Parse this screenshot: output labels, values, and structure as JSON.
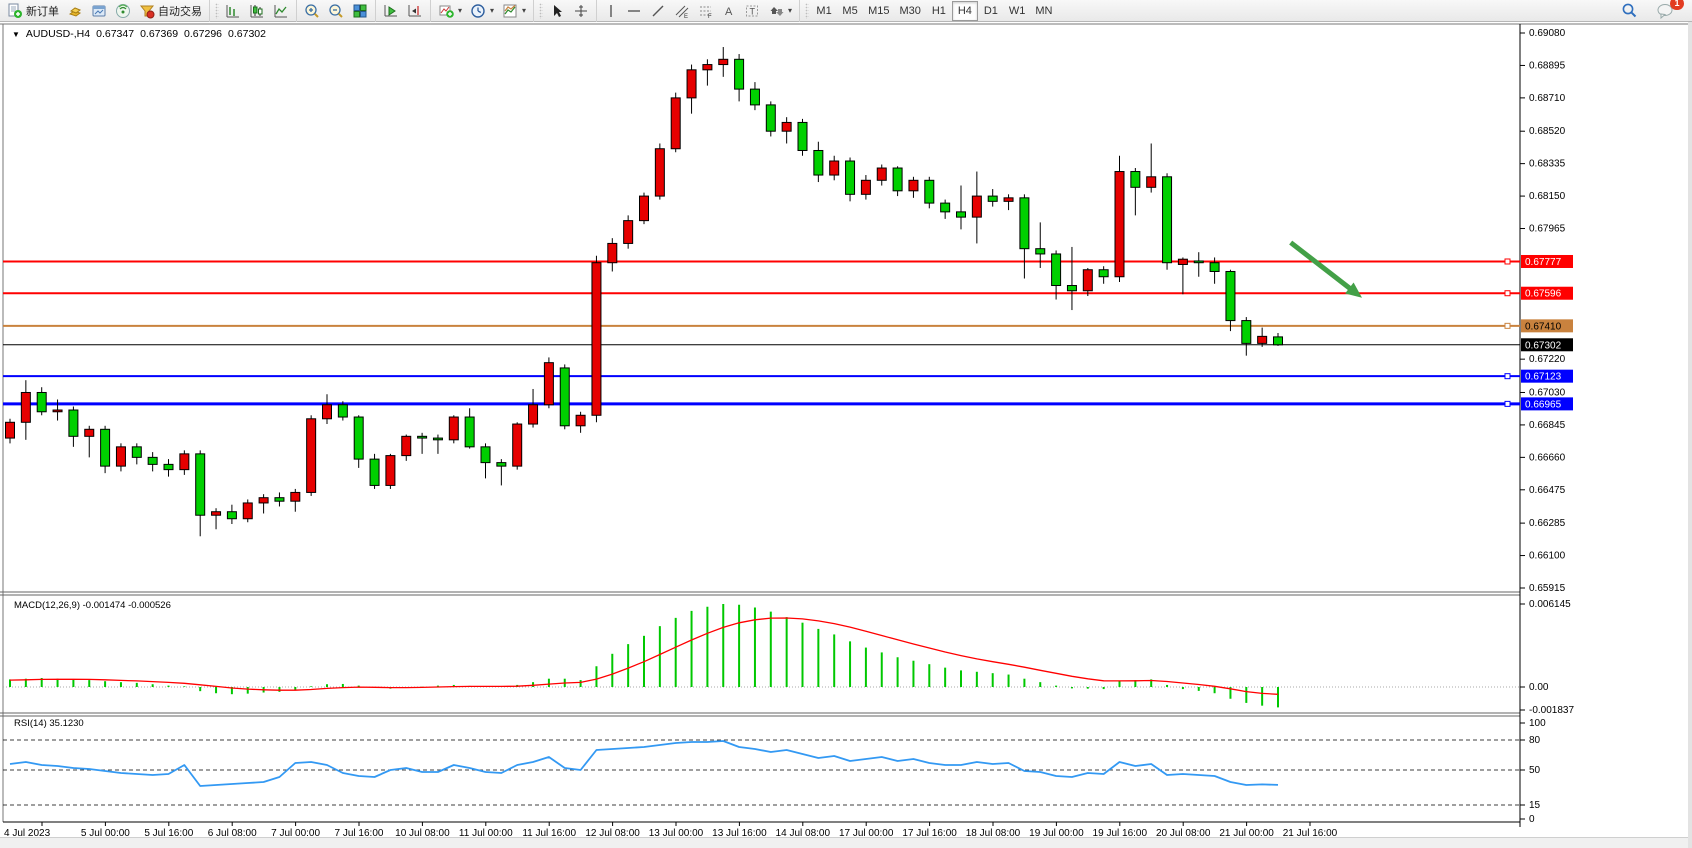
{
  "toolbar": {
    "new_order_label": "新订单",
    "autotrade_label": "自动交易",
    "timeframes": [
      "M1",
      "M5",
      "M15",
      "M30",
      "H1",
      "H4",
      "D1",
      "W1",
      "MN"
    ],
    "active_timeframe": "H4",
    "notification_count": "1"
  },
  "chart": {
    "title": "AUDUSD-,H4",
    "open": "0.67347",
    "high": "0.67369",
    "low": "0.67296",
    "close": "0.67302"
  },
  "indicators": {
    "macd_label": "MACD(12,26,9)",
    "macd_values": "-0.001474 -0.000526",
    "rsi_label": "RSI(14)",
    "rsi_value": "35.1230"
  },
  "chart_data": [
    {
      "type": "candlestick",
      "title": "AUDUSD-,H4",
      "timeframe": "H4",
      "bull_color": "#e60000",
      "bear_color": "#00d000",
      "ylim": [
        0.65915,
        0.6908
      ],
      "y_ticks": [
        "0.69080",
        "0.68895",
        "0.68710",
        "0.68520",
        "0.68335",
        "0.68150",
        "0.67965",
        "0.67220",
        "0.67030",
        "0.66845",
        "0.66660",
        "0.66475",
        "0.66285",
        "0.66100",
        "0.65915"
      ],
      "x_labels": [
        "4 Jul 2023",
        "5 Jul 00:00",
        "5 Jul 16:00",
        "6 Jul 08:00",
        "7 Jul 00:00",
        "7 Jul 16:00",
        "10 Jul 08:00",
        "11 Jul 00:00",
        "11 Jul 16:00",
        "12 Jul 08:00",
        "13 Jul 00:00",
        "13 Jul 16:00",
        "14 Jul 08:00",
        "17 Jul 00:00",
        "17 Jul 16:00",
        "18 Jul 08:00",
        "19 Jul 00:00",
        "19 Jul 16:00",
        "20 Jul 08:00",
        "21 Jul 00:00",
        "21 Jul 16:00"
      ],
      "price_lines": [
        {
          "price": "0.67777",
          "color": "#ff0000",
          "width": 2,
          "text_color": "#ffffff"
        },
        {
          "price": "0.67596",
          "color": "#ff0000",
          "width": 2,
          "text_color": "#ffffff"
        },
        {
          "price": "0.67410",
          "color": "#c9823e",
          "width": 2,
          "text_color": "#000000"
        },
        {
          "price": "0.67302",
          "color": "#000000",
          "width": 1,
          "text_color": "#ffffff",
          "style": "current-price"
        },
        {
          "price": "0.67123",
          "color": "#0000ff",
          "width": 2,
          "text_color": "#ffffff"
        },
        {
          "price": "0.66965",
          "color": "#0000ff",
          "width": 3,
          "text_color": "#ffffff"
        }
      ],
      "annotation_arrow": {
        "from_bar": 80.8,
        "from_price": 0.67885,
        "to_bar": 85.3,
        "to_price": 0.6757,
        "color": "#43a047"
      },
      "ohlc": [
        [
          0.6677,
          0.6688,
          0.6674,
          0.6686
        ],
        [
          0.6686,
          0.671,
          0.6676,
          0.6703
        ],
        [
          0.6703,
          0.6706,
          0.669,
          0.6692
        ],
        [
          0.6692,
          0.6699,
          0.6687,
          0.6693
        ],
        [
          0.6693,
          0.6695,
          0.6672,
          0.6678
        ],
        [
          0.6678,
          0.6684,
          0.6666,
          0.6682
        ],
        [
          0.6682,
          0.6684,
          0.6657,
          0.6661
        ],
        [
          0.6661,
          0.6674,
          0.6658,
          0.6672
        ],
        [
          0.6672,
          0.6674,
          0.6662,
          0.6666
        ],
        [
          0.6666,
          0.6669,
          0.6658,
          0.6662
        ],
        [
          0.6662,
          0.6665,
          0.6655,
          0.6659
        ],
        [
          0.6659,
          0.667,
          0.6656,
          0.6668
        ],
        [
          0.6668,
          0.667,
          0.6621,
          0.6633
        ],
        [
          0.6633,
          0.6637,
          0.6625,
          0.6635
        ],
        [
          0.6635,
          0.6639,
          0.6628,
          0.6631
        ],
        [
          0.6631,
          0.6642,
          0.6629,
          0.664
        ],
        [
          0.664,
          0.6645,
          0.6634,
          0.6643
        ],
        [
          0.6643,
          0.6646,
          0.6638,
          0.6641
        ],
        [
          0.6641,
          0.6648,
          0.6635,
          0.6646
        ],
        [
          0.6646,
          0.669,
          0.6644,
          0.6688
        ],
        [
          0.6688,
          0.6702,
          0.6685,
          0.6696
        ],
        [
          0.6696,
          0.6698,
          0.6687,
          0.6689
        ],
        [
          0.6689,
          0.669,
          0.666,
          0.6665
        ],
        [
          0.6665,
          0.6668,
          0.6648,
          0.665
        ],
        [
          0.665,
          0.6668,
          0.6648,
          0.6667
        ],
        [
          0.6667,
          0.6679,
          0.6664,
          0.6678
        ],
        [
          0.6678,
          0.668,
          0.6668,
          0.6677
        ],
        [
          0.6677,
          0.6679,
          0.6668,
          0.6676
        ],
        [
          0.6676,
          0.669,
          0.6674,
          0.6689
        ],
        [
          0.6689,
          0.6694,
          0.6671,
          0.6672
        ],
        [
          0.6672,
          0.6674,
          0.6654,
          0.6663
        ],
        [
          0.6663,
          0.6665,
          0.665,
          0.6661
        ],
        [
          0.6661,
          0.6686,
          0.6659,
          0.6685
        ],
        [
          0.6685,
          0.6705,
          0.6683,
          0.6696
        ],
        [
          0.6696,
          0.6723,
          0.6694,
          0.672
        ],
        [
          0.6717,
          0.6719,
          0.6682,
          0.6684
        ],
        [
          0.6684,
          0.6692,
          0.668,
          0.669
        ],
        [
          0.669,
          0.6781,
          0.6686,
          0.6777
        ],
        [
          0.6777,
          0.6791,
          0.6772,
          0.6788
        ],
        [
          0.6788,
          0.6804,
          0.6785,
          0.6801
        ],
        [
          0.6801,
          0.6817,
          0.6799,
          0.6815
        ],
        [
          0.6815,
          0.6845,
          0.6813,
          0.6842
        ],
        [
          0.6842,
          0.6874,
          0.684,
          0.6871
        ],
        [
          0.6871,
          0.689,
          0.6862,
          0.6887
        ],
        [
          0.6887,
          0.6893,
          0.6878,
          0.689
        ],
        [
          0.689,
          0.69,
          0.6883,
          0.6893
        ],
        [
          0.6893,
          0.6896,
          0.6869,
          0.6876
        ],
        [
          0.6876,
          0.688,
          0.6864,
          0.6867
        ],
        [
          0.6867,
          0.6869,
          0.6849,
          0.6852
        ],
        [
          0.6852,
          0.686,
          0.6845,
          0.6857
        ],
        [
          0.6857,
          0.6859,
          0.6838,
          0.6841
        ],
        [
          0.6841,
          0.6846,
          0.6823,
          0.6827
        ],
        [
          0.6827,
          0.6838,
          0.6824,
          0.6835
        ],
        [
          0.6835,
          0.6837,
          0.6812,
          0.6816
        ],
        [
          0.6816,
          0.6827,
          0.6813,
          0.6824
        ],
        [
          0.6824,
          0.6833,
          0.6821,
          0.6831
        ],
        [
          0.6831,
          0.6832,
          0.6815,
          0.6818
        ],
        [
          0.6818,
          0.6826,
          0.6814,
          0.6824
        ],
        [
          0.6824,
          0.6826,
          0.6808,
          0.6811
        ],
        [
          0.6811,
          0.6813,
          0.6802,
          0.6806
        ],
        [
          0.6806,
          0.6821,
          0.6796,
          0.6803
        ],
        [
          0.6803,
          0.6829,
          0.6788,
          0.6815
        ],
        [
          0.6815,
          0.6819,
          0.6809,
          0.6812
        ],
        [
          0.6812,
          0.6816,
          0.6807,
          0.6814
        ],
        [
          0.6814,
          0.6816,
          0.6768,
          0.6785
        ],
        [
          0.6785,
          0.68,
          0.6774,
          0.6782
        ],
        [
          0.6782,
          0.6784,
          0.6756,
          0.6764
        ],
        [
          0.6764,
          0.6786,
          0.675,
          0.6761
        ],
        [
          0.6761,
          0.6774,
          0.6758,
          0.6773
        ],
        [
          0.6773,
          0.6775,
          0.6765,
          0.6769
        ],
        [
          0.6769,
          0.6838,
          0.6766,
          0.6829
        ],
        [
          0.6829,
          0.6831,
          0.6804,
          0.682
        ],
        [
          0.682,
          0.6845,
          0.6817,
          0.6826
        ],
        [
          0.6826,
          0.6828,
          0.6773,
          0.6777
        ],
        [
          0.6776,
          0.678,
          0.6759,
          0.6779
        ],
        [
          0.6778,
          0.6783,
          0.6769,
          0.6777
        ],
        [
          0.6777,
          0.678,
          0.6765,
          0.6772
        ],
        [
          0.6772,
          0.6773,
          0.6738,
          0.6744
        ],
        [
          0.6744,
          0.6746,
          0.6724,
          0.6731
        ],
        [
          0.6731,
          0.674,
          0.6729,
          0.6735
        ],
        [
          0.67347,
          0.67369,
          0.67296,
          0.67302
        ]
      ]
    },
    {
      "type": "bar",
      "name": "MACD(12,26,9)",
      "histogram_color": "#00c800",
      "signal_color": "#ff0000",
      "ylim": [
        -0.001837,
        0.006145
      ],
      "y_ticks": [
        "0.006145",
        "0.00",
        "-0.001837"
      ],
      "current": {
        "macd": -0.001474,
        "signal": -0.000526
      },
      "values": [
        0.00055,
        0.0006,
        0.00065,
        0.0006,
        0.00055,
        0.0005,
        0.00042,
        0.00035,
        0.0003,
        0.0002,
        0.0001,
        5e-05,
        -0.0003,
        -0.00045,
        -0.00052,
        -0.00048,
        -0.0004,
        -0.00035,
        -0.00025,
        5e-05,
        0.0002,
        0.00022,
        0.0001,
        -5e-05,
        -0.00012,
        -5e-05,
        2e-05,
        0.0001,
        0.00015,
        8e-05,
        5e-05,
        2e-05,
        0.00015,
        0.00035,
        0.0006,
        0.0006,
        0.0005,
        0.0015,
        0.0024,
        0.0031,
        0.0037,
        0.0044,
        0.005,
        0.0055,
        0.0058,
        0.006,
        0.00595,
        0.00575,
        0.00545,
        0.00505,
        0.00465,
        0.0042,
        0.0038,
        0.0033,
        0.00285,
        0.0025,
        0.00215,
        0.0019,
        0.00165,
        0.0014,
        0.0012,
        0.0011,
        0.001,
        0.0009,
        0.0006,
        0.00035,
        0.0001,
        -0.0001,
        -0.00012,
        -0.00015,
        0.0004,
        0.0005,
        0.00055,
        0.00015,
        -0.00015,
        -0.00028,
        -0.00045,
        -0.00085,
        -0.00115,
        -0.00135,
        -0.001474
      ],
      "signal": [
        0.0005,
        0.00052,
        0.00055,
        0.00056,
        0.00056,
        0.00055,
        0.00052,
        0.00048,
        0.00044,
        0.00039,
        0.00033,
        0.00027,
        0.00016,
        4e-05,
        -7e-05,
        -0.00015,
        -0.0002,
        -0.00023,
        -0.00023,
        -0.00018,
        -0.0001,
        -4e-05,
        -1e-05,
        -2e-05,
        -4e-05,
        -4e-05,
        -3e-05,
        0,
        3e-05,
        4e-05,
        4e-05,
        4e-05,
        6e-05,
        0.00012,
        0.00021,
        0.00029,
        0.00033,
        0.00057,
        0.00093,
        0.00137,
        0.00183,
        0.00235,
        0.00288,
        0.0034,
        0.00388,
        0.00431,
        0.00464,
        0.00486,
        0.00498,
        0.00499,
        0.00492,
        0.00478,
        0.00458,
        0.00433,
        0.00403,
        0.00372,
        0.00341,
        0.00311,
        0.00282,
        0.00253,
        0.00227,
        0.00203,
        0.00183,
        0.00164,
        0.00143,
        0.00121,
        0.00099,
        0.00077,
        0.00059,
        0.00045,
        0.00044,
        0.00045,
        0.00047,
        0.0004,
        0.00029,
        0.00018,
        5e-05,
        -0.00013,
        -0.00033,
        -0.00046,
        -0.000526
      ]
    },
    {
      "type": "line",
      "name": "RSI(14)",
      "line_color": "#3399f3",
      "ylim": [
        0,
        100
      ],
      "levels": [
        80,
        50,
        15
      ],
      "y_ticks": [
        "100",
        "80",
        "50",
        "15",
        "0"
      ],
      "current": 35.123,
      "values": [
        56,
        58,
        55,
        54,
        52,
        51,
        49,
        47,
        46,
        45,
        46,
        55,
        34,
        35,
        36,
        37,
        38,
        43,
        57,
        58,
        55,
        47,
        44,
        43,
        50,
        52,
        48,
        48,
        55,
        52,
        48,
        47,
        55,
        58,
        63,
        52,
        50,
        70,
        71,
        72,
        73,
        75,
        77,
        78,
        78,
        79,
        73,
        71,
        68,
        70,
        66,
        62,
        64,
        59,
        61,
        63,
        59,
        61,
        57,
        55,
        55,
        58,
        56,
        57,
        49,
        48,
        44,
        43,
        47,
        46,
        58,
        54,
        56,
        45,
        46,
        45,
        44,
        38,
        35,
        35.6,
        35.12
      ]
    }
  ]
}
